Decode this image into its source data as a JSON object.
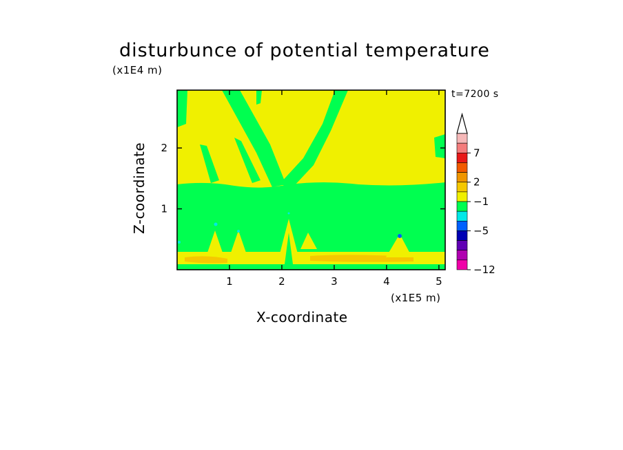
{
  "chart_data": {
    "type": "contour",
    "title": "disturbunce of potential temperature",
    "xlabel": "X-coordinate",
    "ylabel": "Z-coordinate",
    "x_unit": "(x1E5 m)",
    "y_unit": "(x1E4 m)",
    "time_label": "t=7200 s",
    "xlim": [
      0,
      5.12
    ],
    "ylim": [
      0,
      2.95
    ],
    "xticks": [
      "1",
      "2",
      "3",
      "4",
      "5"
    ],
    "yticks": [
      "1",
      "2"
    ],
    "colorbar": {
      "labels": [
        "7",
        "2",
        "−1",
        "−5",
        "−12"
      ],
      "label_levels": [
        7,
        2,
        -1,
        -5,
        -12
      ],
      "colors_top_to_bottom": [
        "#f5b8b8",
        "#f47c7c",
        "#e81818",
        "#f25a00",
        "#f09600",
        "#f5c800",
        "#f0f000",
        "#00ff50",
        "#00e8e8",
        "#0060ff",
        "#0000b4",
        "#6000b4",
        "#b000b0",
        "#f000a8"
      ],
      "extend": "max"
    },
    "field_colors": {
      "positive_small": "#f0f000",
      "near_zero": "#00ff50",
      "warm": "#f5c800",
      "cool": "#00e8e8",
      "cold": "#0060ff"
    }
  }
}
